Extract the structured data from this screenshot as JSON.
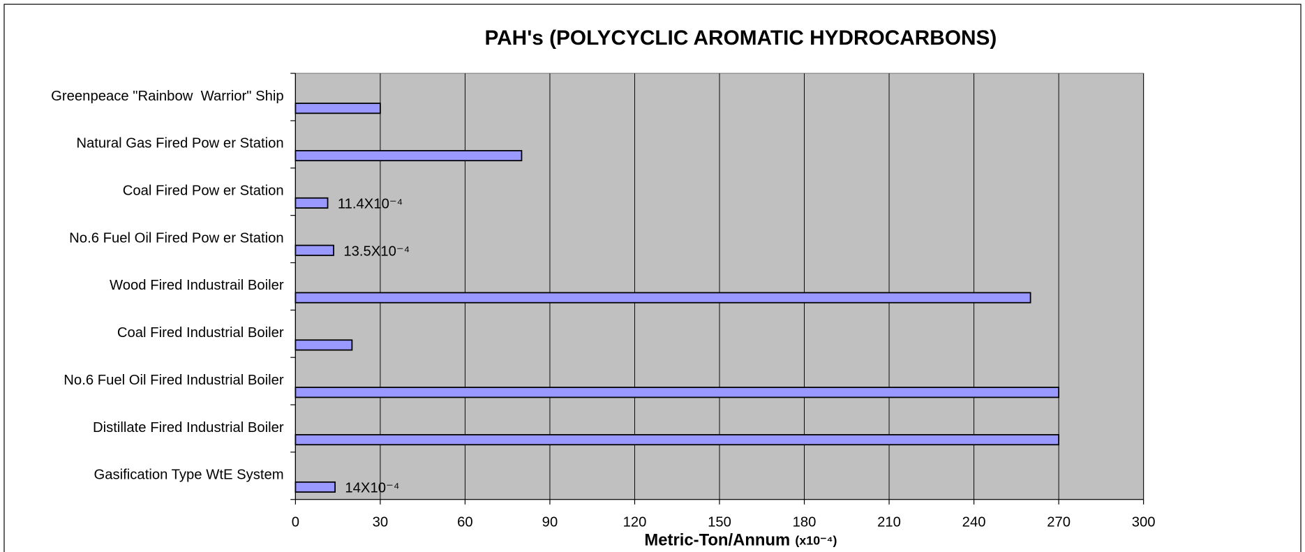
{
  "chart_data": {
    "type": "bar",
    "orientation": "horizontal",
    "title": "PAH's (POLYCYCLIC AROMATIC HYDROCARBONS)",
    "xlabel": "Metric-Ton/Annum",
    "xlabel_unit": "(x10⁻⁴)",
    "categories": [
      "Greenpeace \"Rainbow  Warrior\" Ship",
      "Natural Gas Fired Pow er Station",
      "Coal Fired Pow er Station",
      "No.6 Fuel Oil Fired Pow er Station",
      "Wood Fired Industrail Boiler",
      "Coal Fired Industrial Boiler",
      "No.6 Fuel Oil Fired Industrial Boiler",
      "Distillate Fired Industrial Boiler",
      "Gasification Type WtE System"
    ],
    "values": [
      30,
      80,
      11.4,
      13.5,
      260,
      20,
      270,
      270,
      14
    ],
    "value_labels": [
      null,
      null,
      "11.4X10⁻⁴",
      "13.5X10⁻⁴",
      null,
      null,
      null,
      null,
      "14X10⁻⁴"
    ],
    "color": "#9999ff",
    "background": "#c0c0c0",
    "xlim": [
      0,
      300
    ],
    "xticks": [
      0,
      30,
      60,
      90,
      120,
      150,
      180,
      210,
      240,
      270,
      300
    ],
    "grid": true
  }
}
